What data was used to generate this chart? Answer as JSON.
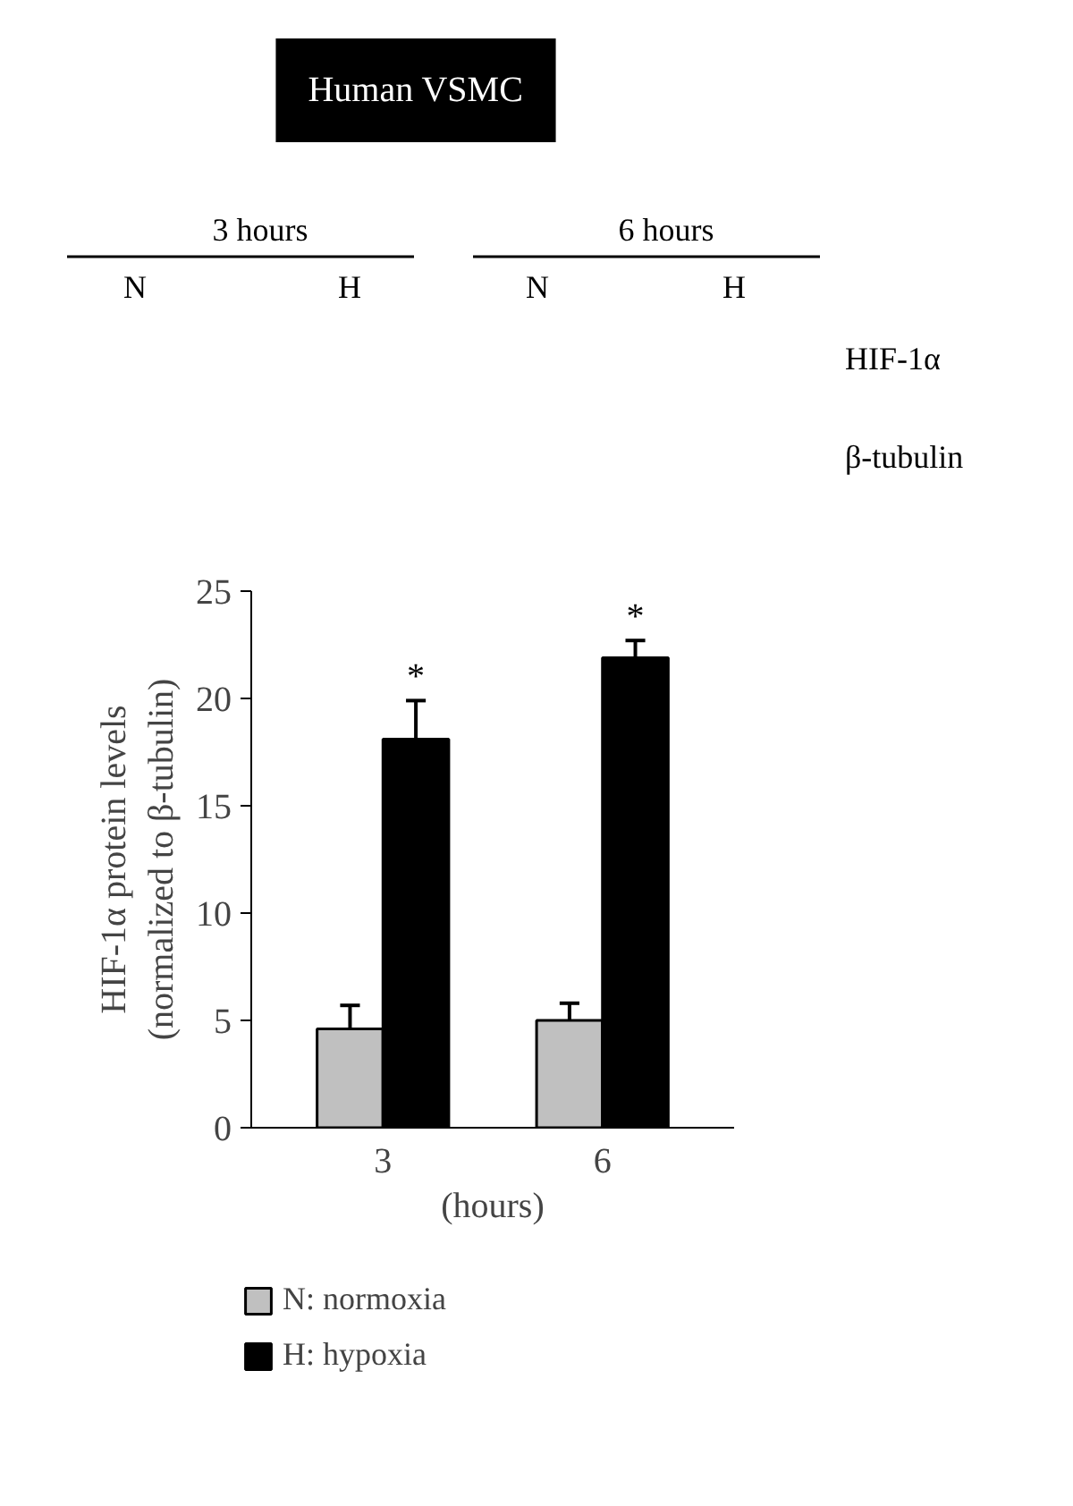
{
  "chart_data": {
    "type": "bar",
    "categories": [
      "3",
      "6"
    ],
    "xlabel": "(hours)",
    "ylabel": "HIF-1α protein levels\n(normalized to β-tubulin)",
    "series": [
      {
        "name": "N: normoxia",
        "color": "#c0c0c0",
        "values": [
          4.6,
          5.0
        ],
        "errors": [
          [
            4.6,
            5.7
          ],
          [
            5.0,
            5.8
          ]
        ]
      },
      {
        "name": "H: hypoxia",
        "color": "#000000",
        "values": [
          18.1,
          21.9
        ],
        "errors": [
          [
            18.1,
            19.9
          ],
          [
            21.9,
            22.7
          ]
        ]
      }
    ],
    "ylim": [
      0,
      25
    ],
    "yticks": [
      0,
      5,
      10,
      15,
      20,
      25
    ],
    "grid": false,
    "legend": "bottom",
    "annotations": [
      "Human VSMC",
      "3 hours",
      "6 hours",
      "N",
      "H",
      "N",
      "H",
      "HIF-1α",
      "β-tubulin",
      "*",
      "*"
    ]
  }
}
